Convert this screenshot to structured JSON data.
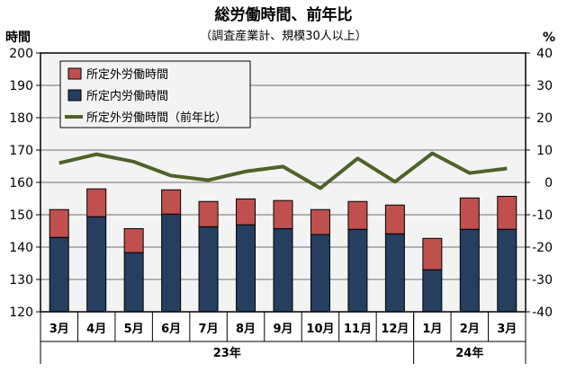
{
  "chart_data": {
    "type": "bar",
    "title": "総労働時間、前年比",
    "subtitle": "（調査産業計、規模30人以上）",
    "ylabel": "時間",
    "y2label": "%",
    "ylim": [
      120,
      200
    ],
    "y2lim": [
      -40,
      40
    ],
    "yticks": [
      120,
      130,
      140,
      150,
      160,
      170,
      180,
      190,
      200
    ],
    "y2ticks": [
      -40,
      -30,
      -20,
      -10,
      0,
      10,
      20,
      30,
      40
    ],
    "categories": [
      "3月",
      "4月",
      "5月",
      "6月",
      "7月",
      "8月",
      "9月",
      "10月",
      "11月",
      "12月",
      "1月",
      "2月",
      "3月"
    ],
    "year_groups": [
      {
        "label": "23年",
        "count": 10
      },
      {
        "label": "24年",
        "count": 3
      }
    ],
    "series": [
      {
        "name": "所定内労働時間",
        "type": "bar",
        "color": "#243f60",
        "values": [
          143.0,
          149.4,
          138.3,
          150.2,
          146.3,
          146.9,
          145.7,
          143.9,
          145.5,
          144.1,
          133.0,
          145.5,
          145.5
        ]
      },
      {
        "name": "所定外労働時間",
        "type": "bar",
        "color": "#c0504d",
        "values": [
          8.6,
          8.6,
          7.4,
          7.5,
          7.8,
          8.0,
          8.7,
          7.7,
          8.6,
          8.9,
          9.7,
          9.7,
          10.2
        ]
      },
      {
        "name": "所定外労働時間（前年比）",
        "type": "line",
        "axis": "right",
        "color": "#4f6228",
        "values": [
          6.0,
          8.7,
          6.4,
          2.1,
          0.7,
          3.4,
          4.9,
          -1.8,
          7.4,
          0.2,
          9.0,
          2.9,
          4.3
        ]
      }
    ],
    "legend": [
      "所定外労働時間",
      "所定内労働時間",
      "所定外労働時間（前年比）"
    ],
    "grid": true,
    "legend_position": "top-left"
  }
}
